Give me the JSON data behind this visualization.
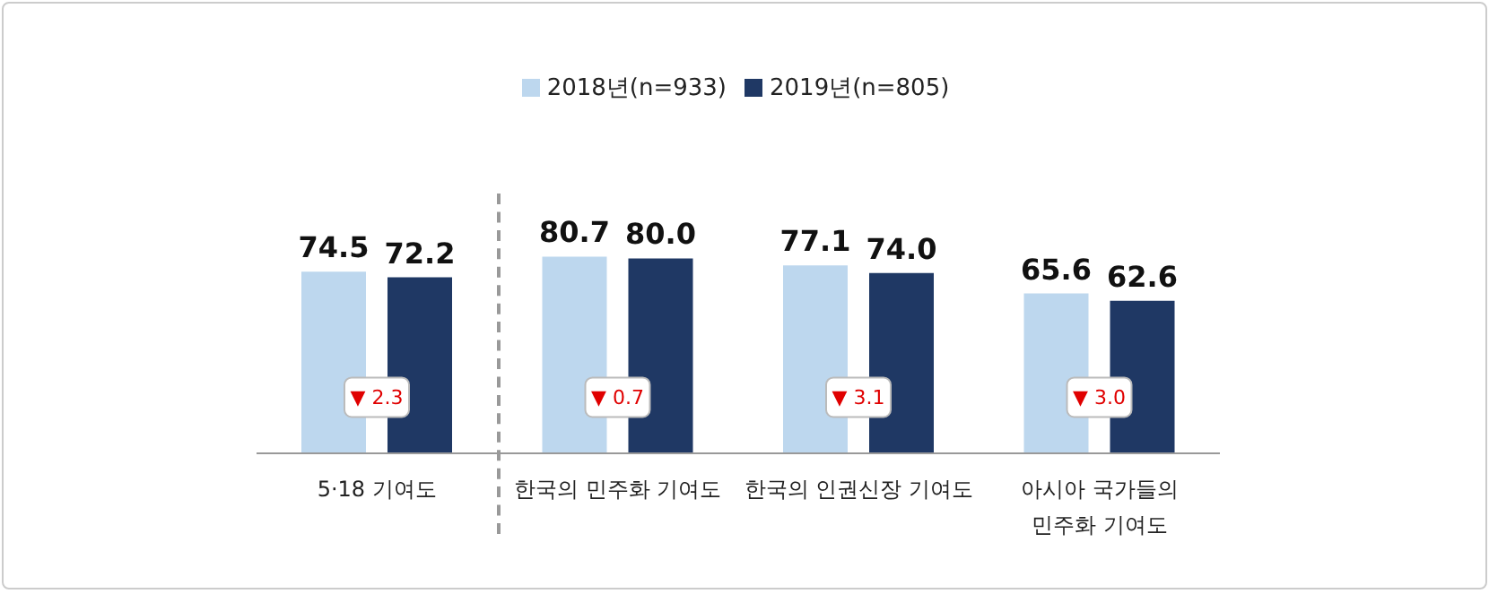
{
  "chart_data": {
    "type": "bar",
    "categories": [
      "5·18 기여도",
      "한국의 민주화 기여도",
      "한국의 인권신장 기여도",
      "아시아 국가들의\n민주화 기여도"
    ],
    "series": [
      {
        "name": "2018년(n=933)",
        "color": "#bdd7ee",
        "values": [
          74.5,
          80.7,
          77.1,
          65.6
        ],
        "value_labels": [
          "74.5",
          "80.7",
          "77.1",
          "65.6"
        ]
      },
      {
        "name": "2019년(n=805)",
        "color": "#1f3864",
        "values": [
          72.2,
          80.0,
          74.0,
          62.6
        ],
        "value_labels": [
          "72.2",
          "80.0",
          "74.0",
          "62.6"
        ]
      }
    ],
    "legend": "top",
    "tick_labels": "x",
    "grid": false,
    "annotations": [
      {
        "text": "▼ 2.3",
        "x": "5·18 기여도",
        "y": 23
      },
      {
        "text": "▼ 0.7",
        "x": "한국의 민주화 기여도",
        "y": 23
      },
      {
        "text": "▼ 3.1",
        "x": "한국의 인권신장 기여도",
        "y": 23
      },
      {
        "text": "▼ 3.0",
        "x": "아시아 국가들의\n민주화 기여도",
        "y": 23
      }
    ]
  }
}
